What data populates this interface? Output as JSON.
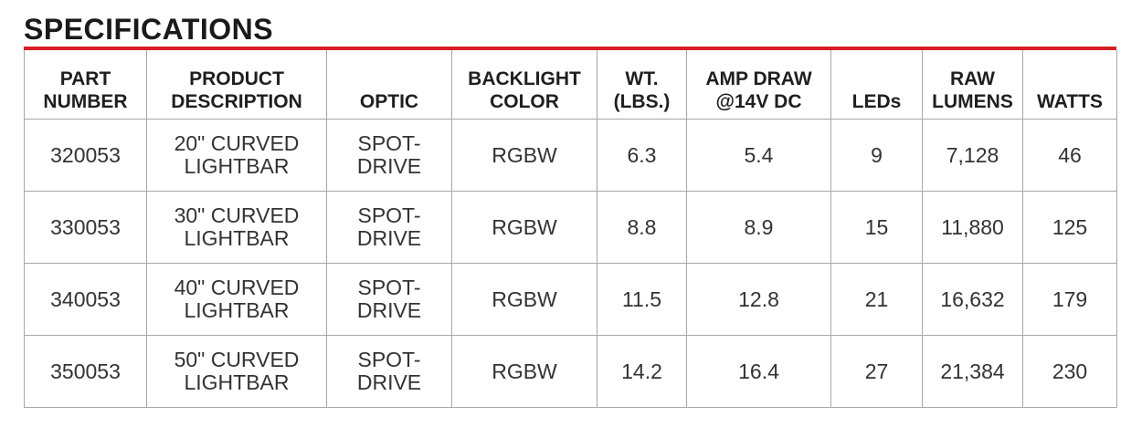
{
  "title": "SPECIFICATIONS",
  "colors": {
    "accent": "#d61f26",
    "text": "#2b2b2b",
    "border": "#a7a7a7"
  },
  "columns": [
    [
      "PART",
      "NUMBER"
    ],
    [
      "PRODUCT",
      "DESCRIPTION"
    ],
    [
      "OPTIC"
    ],
    [
      "BACKLIGHT",
      "COLOR"
    ],
    [
      "WT.",
      "(LBS.)"
    ],
    [
      "AMP DRAW",
      "@14V DC"
    ],
    [
      "LEDs"
    ],
    [
      "RAW",
      "LUMENS"
    ],
    [
      "WATTS"
    ]
  ],
  "rows": [
    {
      "part": "320053",
      "description": [
        "20\" CURVED",
        "LIGHTBAR"
      ],
      "optic": [
        "SPOT-",
        "DRIVE"
      ],
      "backlight": "RGBW",
      "weight": "6.3",
      "amp": "5.4",
      "leds": "9",
      "lumens": "7,128",
      "watts": "46"
    },
    {
      "part": "330053",
      "description": [
        "30\" CURVED",
        "LIGHTBAR"
      ],
      "optic": [
        "SPOT-",
        "DRIVE"
      ],
      "backlight": "RGBW",
      "weight": "8.8",
      "amp": "8.9",
      "leds": "15",
      "lumens": "11,880",
      "watts": "125"
    },
    {
      "part": "340053",
      "description": [
        "40\" CURVED",
        "LIGHTBAR"
      ],
      "optic": [
        "SPOT-",
        "DRIVE"
      ],
      "backlight": "RGBW",
      "weight": "11.5",
      "amp": "12.8",
      "leds": "21",
      "lumens": "16,632",
      "watts": "179"
    },
    {
      "part": "350053",
      "description": [
        "50\" CURVED",
        "LIGHTBAR"
      ],
      "optic": [
        "SPOT-",
        "DRIVE"
      ],
      "backlight": "RGBW",
      "weight": "14.2",
      "amp": "16.4",
      "leds": "27",
      "lumens": "21,384",
      "watts": "230"
    }
  ]
}
